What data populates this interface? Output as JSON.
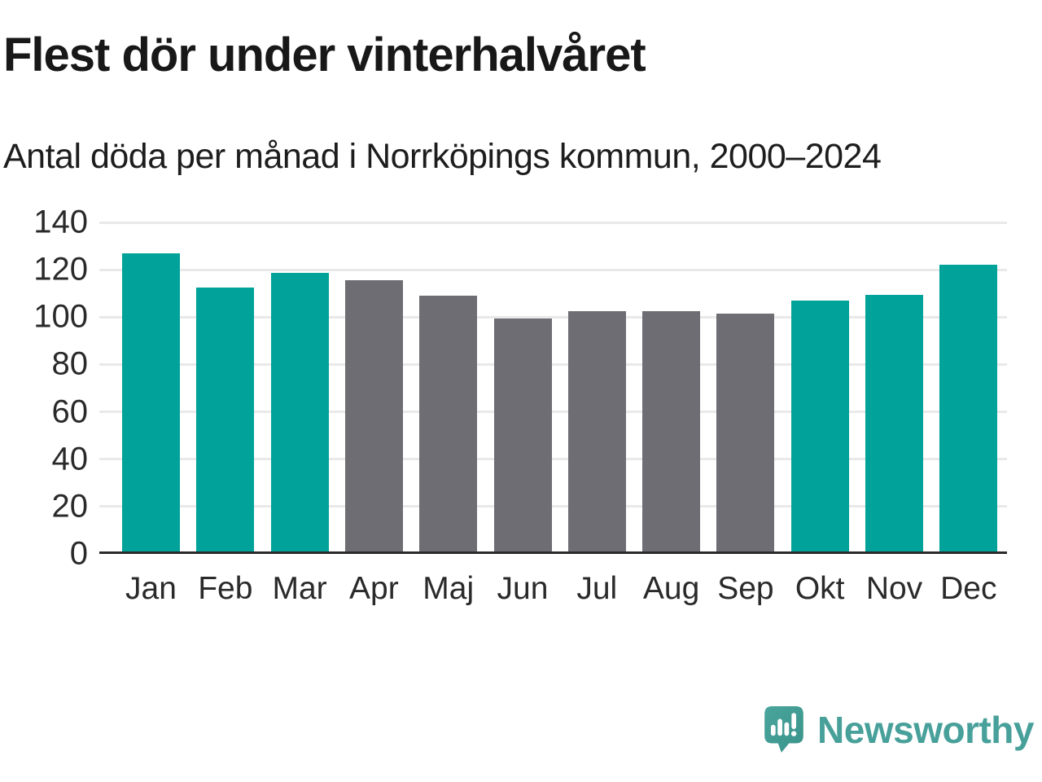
{
  "header": {
    "title": "Flest dör under vinterhalvåret",
    "subtitle": "Antal döda per månad i Norrköpings kommun, 2000–2024"
  },
  "chart_data": {
    "type": "bar",
    "title": "Flest dör under vinterhalvåret",
    "subtitle": "Antal döda per månad i Norrköpings kommun, 2000–2024",
    "categories": [
      "Jan",
      "Feb",
      "Mar",
      "Apr",
      "Maj",
      "Jun",
      "Jul",
      "Aug",
      "Sep",
      "Okt",
      "Nov",
      "Dec"
    ],
    "values": [
      126,
      111.5,
      117.5,
      114.5,
      108,
      98.5,
      101.5,
      101.5,
      100.5,
      106,
      108.5,
      121
    ],
    "bar_colors": [
      "teal",
      "teal",
      "teal",
      "gray",
      "gray",
      "gray",
      "gray",
      "gray",
      "gray",
      "teal",
      "teal",
      "teal"
    ],
    "palette": {
      "teal": "#00a299",
      "gray": "#6e6d74"
    },
    "xlabel": "",
    "ylabel": "",
    "ylim": [
      0,
      140
    ],
    "yticks": [
      0,
      20,
      40,
      60,
      80,
      100,
      120,
      140
    ],
    "grid": true,
    "legend_position": "none"
  },
  "footer": {
    "brand": "Newsworthy"
  },
  "colors": {
    "grid_line": "#e9e9e9",
    "axis_line": "#2b2b2b",
    "text_dark": "#1d1d1d",
    "brand_teal": "#48a09a",
    "logo_bubble": "#459e96"
  }
}
